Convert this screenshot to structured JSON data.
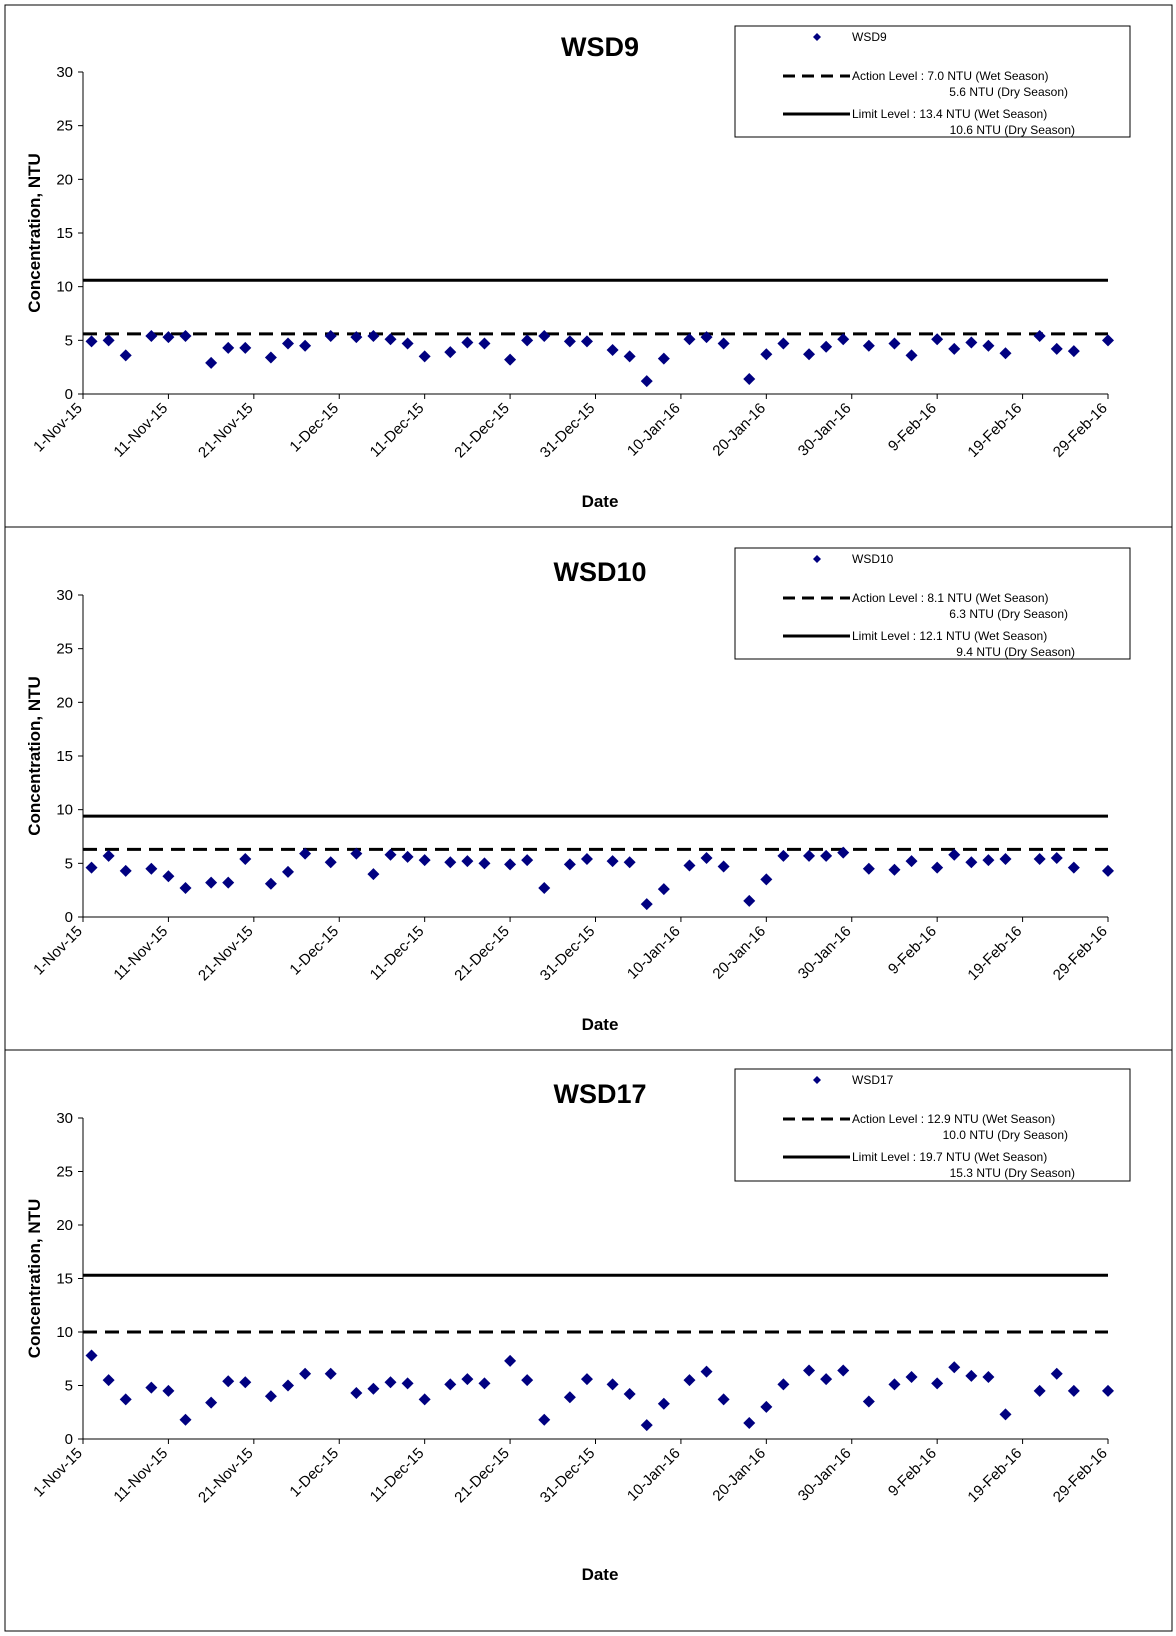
{
  "colors": {
    "marker": "#000080",
    "line": "#000000"
  },
  "x_tick_labels": [
    "1-Nov-15",
    "11-Nov-15",
    "21-Nov-15",
    "1-Dec-15",
    "11-Dec-15",
    "21-Dec-15",
    "31-Dec-15",
    "10-Jan-16",
    "20-Jan-16",
    "30-Jan-16",
    "9-Feb-16",
    "19-Feb-16",
    "29-Feb-16"
  ],
  "chart_data": [
    {
      "type": "scatter",
      "title": "WSD9",
      "xlabel": "Date",
      "ylabel": "Concentration, NTU",
      "ylim": [
        0,
        30
      ],
      "yticks": [
        0,
        5,
        10,
        15,
        20,
        25,
        30
      ],
      "xlim": [
        "1-Nov-15",
        "29-Feb-16"
      ],
      "legend_position": "top-right",
      "series": [
        {
          "name": "WSD9",
          "marker": "diamond",
          "points": [
            {
              "x": "2-Nov-15",
              "y": 4.9
            },
            {
              "x": "4-Nov-15",
              "y": 5.0
            },
            {
              "x": "6-Nov-15",
              "y": 3.6
            },
            {
              "x": "9-Nov-15",
              "y": 5.4
            },
            {
              "x": "11-Nov-15",
              "y": 5.3
            },
            {
              "x": "13-Nov-15",
              "y": 5.4
            },
            {
              "x": "16-Nov-15",
              "y": 2.9
            },
            {
              "x": "18-Nov-15",
              "y": 4.3
            },
            {
              "x": "20-Nov-15",
              "y": 4.3
            },
            {
              "x": "23-Nov-15",
              "y": 3.4
            },
            {
              "x": "25-Nov-15",
              "y": 4.7
            },
            {
              "x": "27-Nov-15",
              "y": 4.5
            },
            {
              "x": "30-Nov-15",
              "y": 5.4
            },
            {
              "x": "3-Dec-15",
              "y": 5.3
            },
            {
              "x": "5-Dec-15",
              "y": 5.4
            },
            {
              "x": "7-Dec-15",
              "y": 5.1
            },
            {
              "x": "9-Dec-15",
              "y": 4.7
            },
            {
              "x": "11-Dec-15",
              "y": 3.5
            },
            {
              "x": "14-Dec-15",
              "y": 3.9
            },
            {
              "x": "16-Dec-15",
              "y": 4.8
            },
            {
              "x": "18-Dec-15",
              "y": 4.7
            },
            {
              "x": "21-Dec-15",
              "y": 3.2
            },
            {
              "x": "23-Dec-15",
              "y": 5.0
            },
            {
              "x": "25-Dec-15",
              "y": 5.4
            },
            {
              "x": "28-Dec-15",
              "y": 4.9
            },
            {
              "x": "30-Dec-15",
              "y": 4.9
            },
            {
              "x": "2-Jan-16",
              "y": 4.1
            },
            {
              "x": "4-Jan-16",
              "y": 3.5
            },
            {
              "x": "6-Jan-16",
              "y": 1.2
            },
            {
              "x": "8-Jan-16",
              "y": 3.3
            },
            {
              "x": "11-Jan-16",
              "y": 5.1
            },
            {
              "x": "13-Jan-16",
              "y": 5.3
            },
            {
              "x": "15-Jan-16",
              "y": 4.7
            },
            {
              "x": "18-Jan-16",
              "y": 1.4
            },
            {
              "x": "20-Jan-16",
              "y": 3.7
            },
            {
              "x": "22-Jan-16",
              "y": 4.7
            },
            {
              "x": "25-Jan-16",
              "y": 3.7
            },
            {
              "x": "27-Jan-16",
              "y": 4.4
            },
            {
              "x": "29-Jan-16",
              "y": 5.1
            },
            {
              "x": "1-Feb-16",
              "y": 4.5
            },
            {
              "x": "4-Feb-16",
              "y": 4.7
            },
            {
              "x": "6-Feb-16",
              "y": 3.6
            },
            {
              "x": "9-Feb-16",
              "y": 5.1
            },
            {
              "x": "11-Feb-16",
              "y": 4.2
            },
            {
              "x": "13-Feb-16",
              "y": 4.8
            },
            {
              "x": "15-Feb-16",
              "y": 4.5
            },
            {
              "x": "17-Feb-16",
              "y": 3.8
            },
            {
              "x": "21-Feb-16",
              "y": 5.4
            },
            {
              "x": "23-Feb-16",
              "y": 4.2
            },
            {
              "x": "25-Feb-16",
              "y": 4.0
            },
            {
              "x": "29-Feb-16",
              "y": 5.0
            }
          ]
        }
      ],
      "reference_lines": [
        {
          "kind": "action",
          "style": "dashed",
          "y": 5.6
        },
        {
          "kind": "limit",
          "style": "solid",
          "y": 10.6
        }
      ],
      "legend": {
        "series_label": "WSD9",
        "action_line1": "Action Level : 7.0 NTU (Wet Season)",
        "action_line2": "5.6 NTU (Dry Season)",
        "limit_line1": "Limit Level :   13.4 NTU (Wet Season)",
        "limit_line2": "10.6 NTU (Dry Season)"
      }
    },
    {
      "type": "scatter",
      "title": "WSD10",
      "xlabel": "Date",
      "ylabel": "Concentration, NTU",
      "ylim": [
        0,
        30
      ],
      "yticks": [
        0,
        5,
        10,
        15,
        20,
        25,
        30
      ],
      "xlim": [
        "1-Nov-15",
        "29-Feb-16"
      ],
      "legend_position": "top-right",
      "series": [
        {
          "name": "WSD10",
          "marker": "diamond",
          "points": [
            {
              "x": "2-Nov-15",
              "y": 4.6
            },
            {
              "x": "4-Nov-15",
              "y": 5.7
            },
            {
              "x": "6-Nov-15",
              "y": 4.3
            },
            {
              "x": "9-Nov-15",
              "y": 4.5
            },
            {
              "x": "11-Nov-15",
              "y": 3.8
            },
            {
              "x": "13-Nov-15",
              "y": 2.7
            },
            {
              "x": "16-Nov-15",
              "y": 3.2
            },
            {
              "x": "18-Nov-15",
              "y": 3.2
            },
            {
              "x": "20-Nov-15",
              "y": 5.4
            },
            {
              "x": "23-Nov-15",
              "y": 3.1
            },
            {
              "x": "25-Nov-15",
              "y": 4.2
            },
            {
              "x": "27-Nov-15",
              "y": 5.9
            },
            {
              "x": "30-Nov-15",
              "y": 5.1
            },
            {
              "x": "3-Dec-15",
              "y": 5.9
            },
            {
              "x": "5-Dec-15",
              "y": 4.0
            },
            {
              "x": "7-Dec-15",
              "y": 5.8
            },
            {
              "x": "9-Dec-15",
              "y": 5.6
            },
            {
              "x": "11-Dec-15",
              "y": 5.3
            },
            {
              "x": "14-Dec-15",
              "y": 5.1
            },
            {
              "x": "16-Dec-15",
              "y": 5.2
            },
            {
              "x": "18-Dec-15",
              "y": 5.0
            },
            {
              "x": "21-Dec-15",
              "y": 4.9
            },
            {
              "x": "23-Dec-15",
              "y": 5.3
            },
            {
              "x": "25-Dec-15",
              "y": 2.7
            },
            {
              "x": "28-Dec-15",
              "y": 4.9
            },
            {
              "x": "30-Dec-15",
              "y": 5.4
            },
            {
              "x": "2-Jan-16",
              "y": 5.2
            },
            {
              "x": "4-Jan-16",
              "y": 5.1
            },
            {
              "x": "6-Jan-16",
              "y": 1.2
            },
            {
              "x": "8-Jan-16",
              "y": 2.6
            },
            {
              "x": "11-Jan-16",
              "y": 4.8
            },
            {
              "x": "13-Jan-16",
              "y": 5.5
            },
            {
              "x": "15-Jan-16",
              "y": 4.7
            },
            {
              "x": "18-Jan-16",
              "y": 1.5
            },
            {
              "x": "20-Jan-16",
              "y": 3.5
            },
            {
              "x": "22-Jan-16",
              "y": 5.7
            },
            {
              "x": "25-Jan-16",
              "y": 5.7
            },
            {
              "x": "27-Jan-16",
              "y": 5.7
            },
            {
              "x": "29-Jan-16",
              "y": 6.0
            },
            {
              "x": "1-Feb-16",
              "y": 4.5
            },
            {
              "x": "4-Feb-16",
              "y": 4.4
            },
            {
              "x": "6-Feb-16",
              "y": 5.2
            },
            {
              "x": "9-Feb-16",
              "y": 4.6
            },
            {
              "x": "11-Feb-16",
              "y": 5.8
            },
            {
              "x": "13-Feb-16",
              "y": 5.1
            },
            {
              "x": "15-Feb-16",
              "y": 5.3
            },
            {
              "x": "17-Feb-16",
              "y": 5.4
            },
            {
              "x": "21-Feb-16",
              "y": 5.4
            },
            {
              "x": "23-Feb-16",
              "y": 5.5
            },
            {
              "x": "25-Feb-16",
              "y": 4.6
            },
            {
              "x": "29-Feb-16",
              "y": 4.3
            }
          ]
        }
      ],
      "reference_lines": [
        {
          "kind": "action",
          "style": "dashed",
          "y": 6.3
        },
        {
          "kind": "limit",
          "style": "solid",
          "y": 9.4
        }
      ],
      "legend": {
        "series_label": "WSD10",
        "action_line1": "Action Level : 8.1 NTU (Wet Season)",
        "action_line2": "6.3 NTU (Dry Season)",
        "limit_line1": "Limit Level :   12.1 NTU (Wet Season)",
        "limit_line2": "9.4 NTU (Dry Season)"
      }
    },
    {
      "type": "scatter",
      "title": "WSD17",
      "xlabel": "Date",
      "ylabel": "Concentration, NTU",
      "ylim": [
        0,
        30
      ],
      "yticks": [
        0,
        5,
        10,
        15,
        20,
        25,
        30
      ],
      "xlim": [
        "1-Nov-15",
        "29-Feb-16"
      ],
      "legend_position": "top-right",
      "series": [
        {
          "name": "WSD17",
          "marker": "diamond",
          "points": [
            {
              "x": "2-Nov-15",
              "y": 7.8
            },
            {
              "x": "4-Nov-15",
              "y": 5.5
            },
            {
              "x": "6-Nov-15",
              "y": 3.7
            },
            {
              "x": "9-Nov-15",
              "y": 4.8
            },
            {
              "x": "11-Nov-15",
              "y": 4.5
            },
            {
              "x": "13-Nov-15",
              "y": 1.8
            },
            {
              "x": "16-Nov-15",
              "y": 3.4
            },
            {
              "x": "18-Nov-15",
              "y": 5.4
            },
            {
              "x": "20-Nov-15",
              "y": 5.3
            },
            {
              "x": "23-Nov-15",
              "y": 4.0
            },
            {
              "x": "25-Nov-15",
              "y": 5.0
            },
            {
              "x": "27-Nov-15",
              "y": 6.1
            },
            {
              "x": "30-Nov-15",
              "y": 6.1
            },
            {
              "x": "3-Dec-15",
              "y": 4.3
            },
            {
              "x": "5-Dec-15",
              "y": 4.7
            },
            {
              "x": "7-Dec-15",
              "y": 5.3
            },
            {
              "x": "9-Dec-15",
              "y": 5.2
            },
            {
              "x": "11-Dec-15",
              "y": 3.7
            },
            {
              "x": "14-Dec-15",
              "y": 5.1
            },
            {
              "x": "16-Dec-15",
              "y": 5.6
            },
            {
              "x": "18-Dec-15",
              "y": 5.2
            },
            {
              "x": "21-Dec-15",
              "y": 7.3
            },
            {
              "x": "23-Dec-15",
              "y": 5.5
            },
            {
              "x": "25-Dec-15",
              "y": 1.8
            },
            {
              "x": "28-Dec-15",
              "y": 3.9
            },
            {
              "x": "30-Dec-15",
              "y": 5.6
            },
            {
              "x": "2-Jan-16",
              "y": 5.1
            },
            {
              "x": "4-Jan-16",
              "y": 4.2
            },
            {
              "x": "6-Jan-16",
              "y": 1.3
            },
            {
              "x": "8-Jan-16",
              "y": 3.3
            },
            {
              "x": "11-Jan-16",
              "y": 5.5
            },
            {
              "x": "13-Jan-16",
              "y": 6.3
            },
            {
              "x": "15-Jan-16",
              "y": 3.7
            },
            {
              "x": "18-Jan-16",
              "y": 1.5
            },
            {
              "x": "20-Jan-16",
              "y": 3.0
            },
            {
              "x": "22-Jan-16",
              "y": 5.1
            },
            {
              "x": "25-Jan-16",
              "y": 6.4
            },
            {
              "x": "27-Jan-16",
              "y": 5.6
            },
            {
              "x": "29-Jan-16",
              "y": 6.4
            },
            {
              "x": "1-Feb-16",
              "y": 3.5
            },
            {
              "x": "4-Feb-16",
              "y": 5.1
            },
            {
              "x": "6-Feb-16",
              "y": 5.8
            },
            {
              "x": "9-Feb-16",
              "y": 5.2
            },
            {
              "x": "11-Feb-16",
              "y": 6.7
            },
            {
              "x": "13-Feb-16",
              "y": 5.9
            },
            {
              "x": "15-Feb-16",
              "y": 5.8
            },
            {
              "x": "17-Feb-16",
              "y": 2.3
            },
            {
              "x": "21-Feb-16",
              "y": 4.5
            },
            {
              "x": "23-Feb-16",
              "y": 6.1
            },
            {
              "x": "25-Feb-16",
              "y": 4.5
            },
            {
              "x": "29-Feb-16",
              "y": 4.5
            }
          ]
        }
      ],
      "reference_lines": [
        {
          "kind": "action",
          "style": "dashed",
          "y": 10.0
        },
        {
          "kind": "limit",
          "style": "solid",
          "y": 15.3
        }
      ],
      "legend": {
        "series_label": "WSD17",
        "action_line1": "Action Level : 12.9 NTU (Wet Season)",
        "action_line2": "10.0 NTU (Dry Season)",
        "limit_line1": "Limit Level :   19.7 NTU (Wet Season)",
        "limit_line2": "15.3 NTU (Dry Season)"
      }
    }
  ]
}
